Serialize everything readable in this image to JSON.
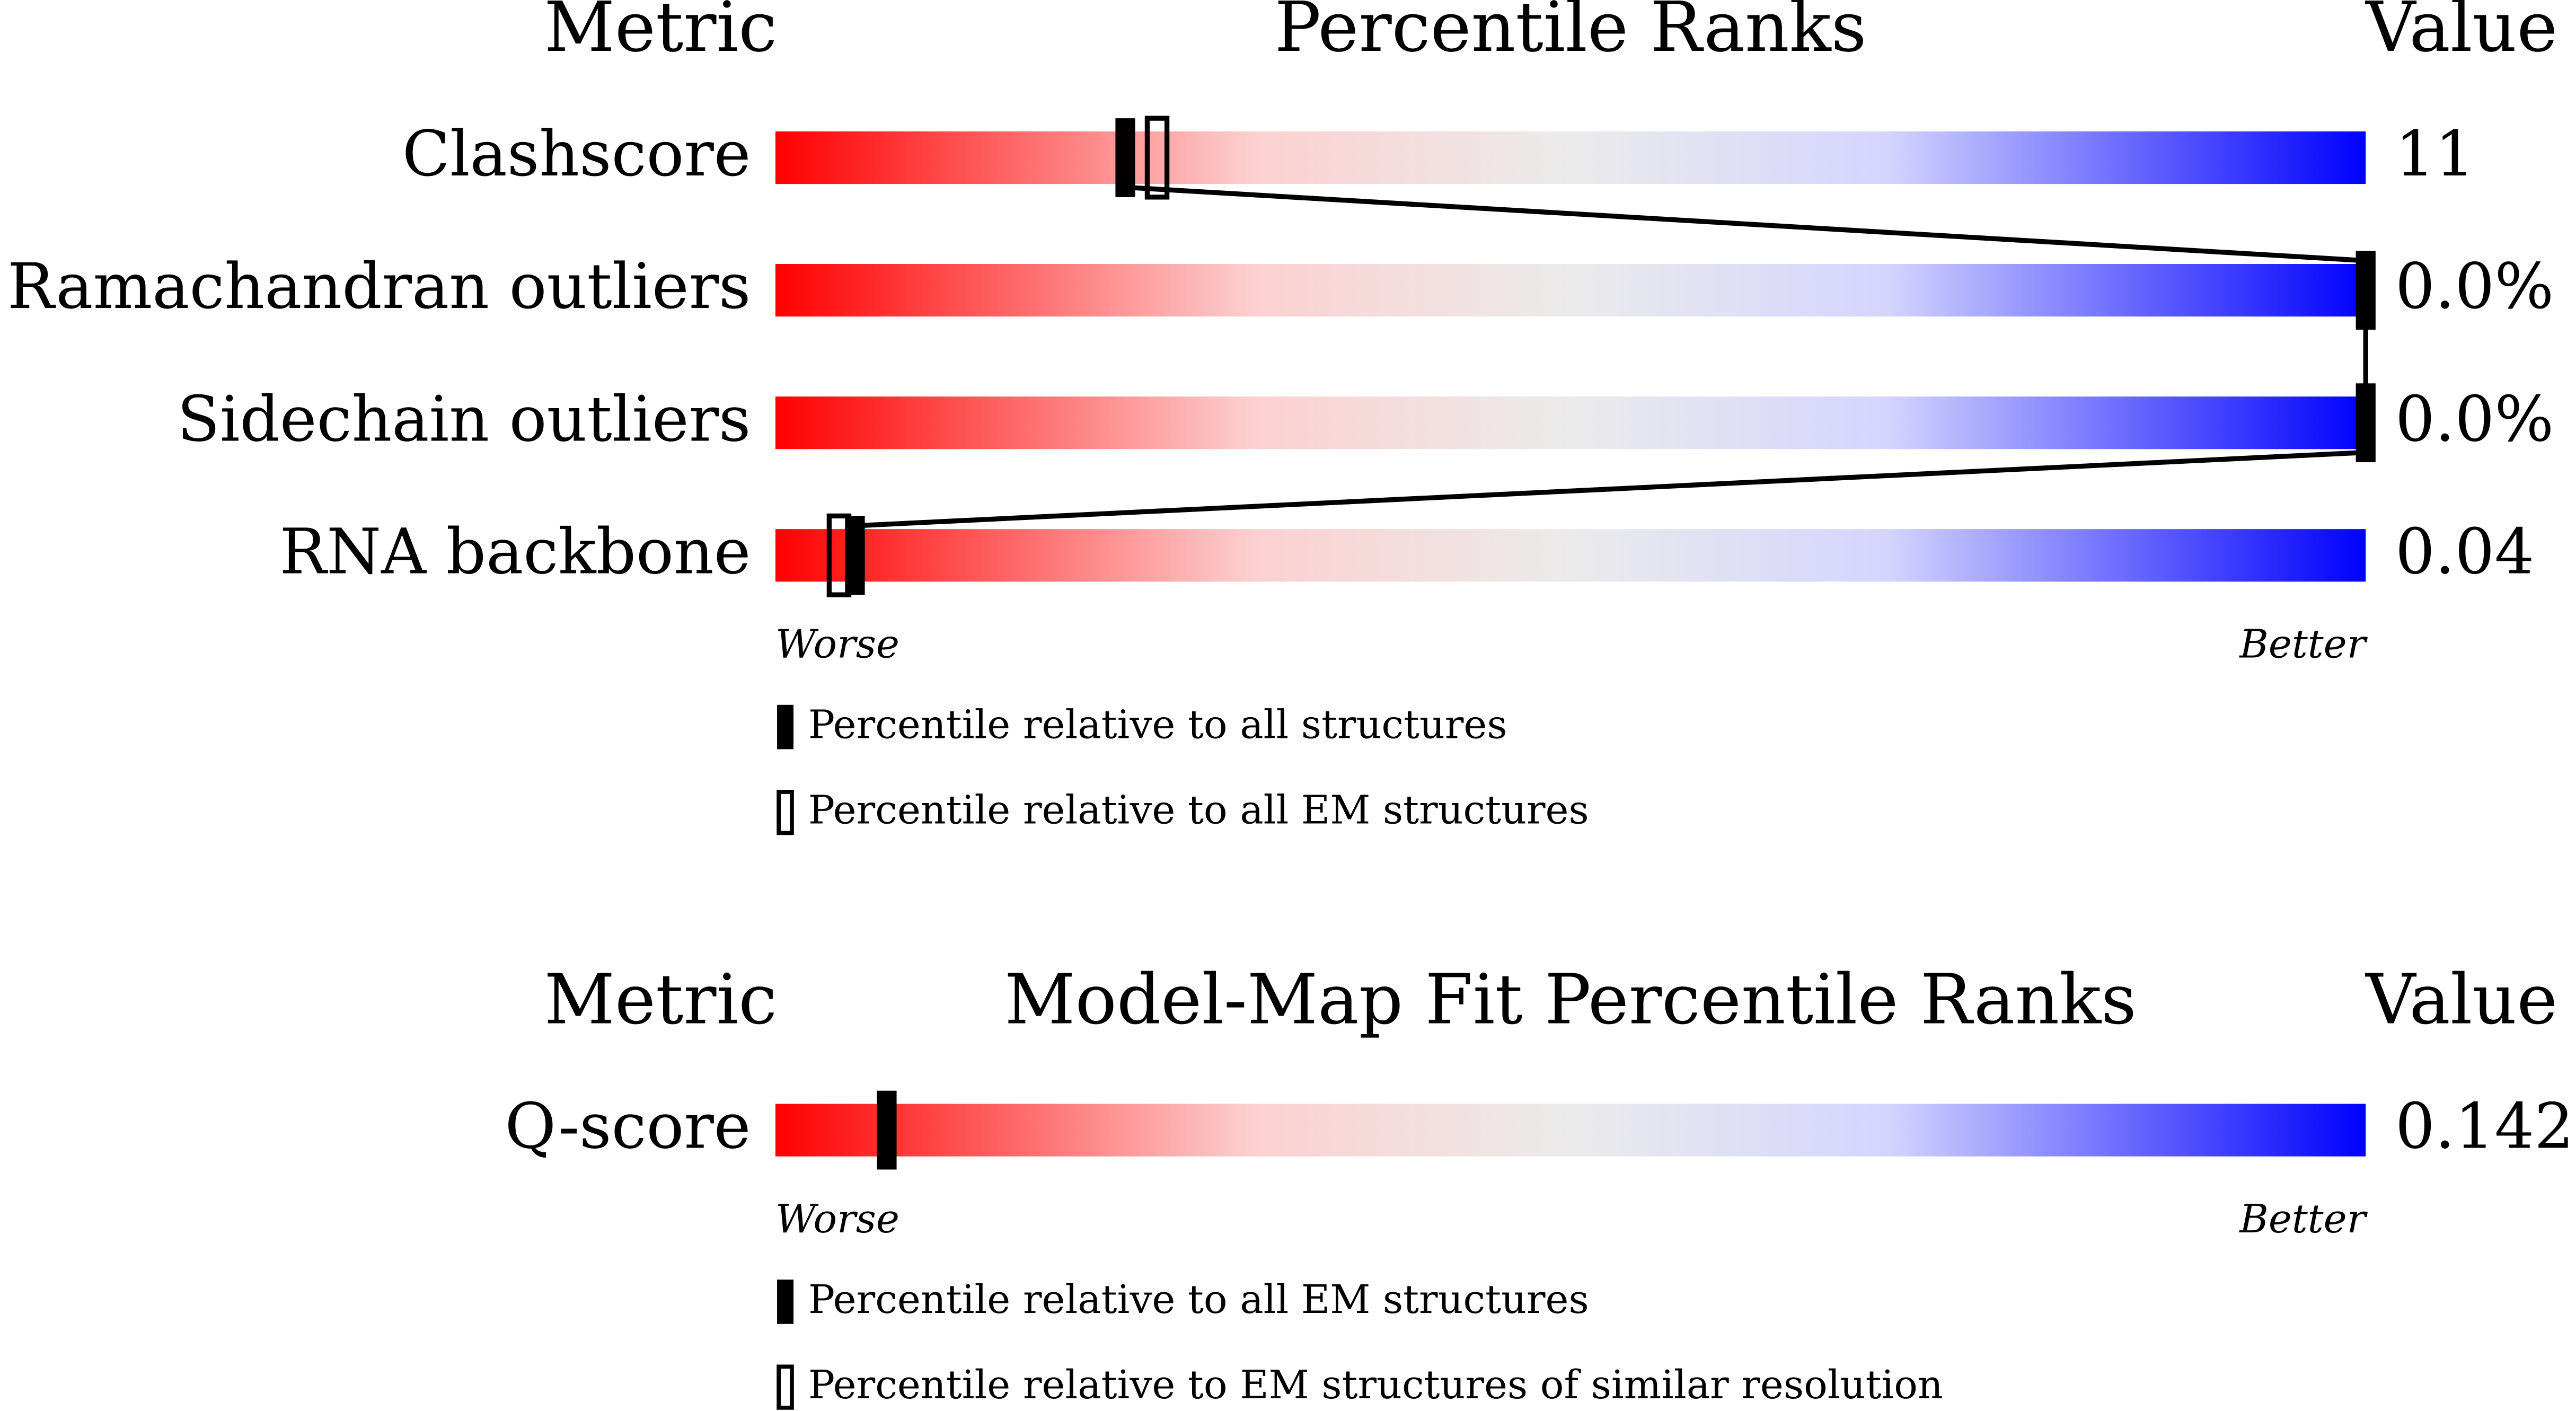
{
  "sections": [
    {
      "headers": {
        "metric": "Metric",
        "title": "Percentile Ranks",
        "value": "Value"
      },
      "range": [
        0,
        100
      ],
      "rows": [
        {
          "metric": "Clashscore",
          "value": "11",
          "marker_filled": 22,
          "marker_open": 24
        },
        {
          "metric": "Ramachandran outliers",
          "value": "0.0%",
          "marker_filled": 100
        },
        {
          "metric": "Sidechain outliers",
          "value": "0.0%",
          "marker_filled": 100
        },
        {
          "metric": "RNA backbone",
          "value": "0.04",
          "marker_filled": 5,
          "marker_open": 4
        }
      ],
      "scale": {
        "worse": "Worse",
        "better": "Better"
      },
      "legend": [
        {
          "label": "Percentile relative to all structures",
          "style": "filled"
        },
        {
          "label": "Percentile relative to all EM structures",
          "style": "open"
        }
      ]
    },
    {
      "headers": {
        "metric": "Metric",
        "title": "Model-Map Fit Percentile Ranks",
        "value": "Value"
      },
      "range": [
        0,
        100
      ],
      "rows": [
        {
          "metric": "Q-score",
          "value": "0.142",
          "marker_filled": 7
        }
      ],
      "scale": {
        "worse": "Worse",
        "better": "Better"
      },
      "legend": [
        {
          "label": "Percentile relative to all EM structures",
          "style": "filled"
        },
        {
          "label": "Percentile relative to EM structures of similar resolution",
          "style": "open"
        }
      ]
    }
  ]
}
